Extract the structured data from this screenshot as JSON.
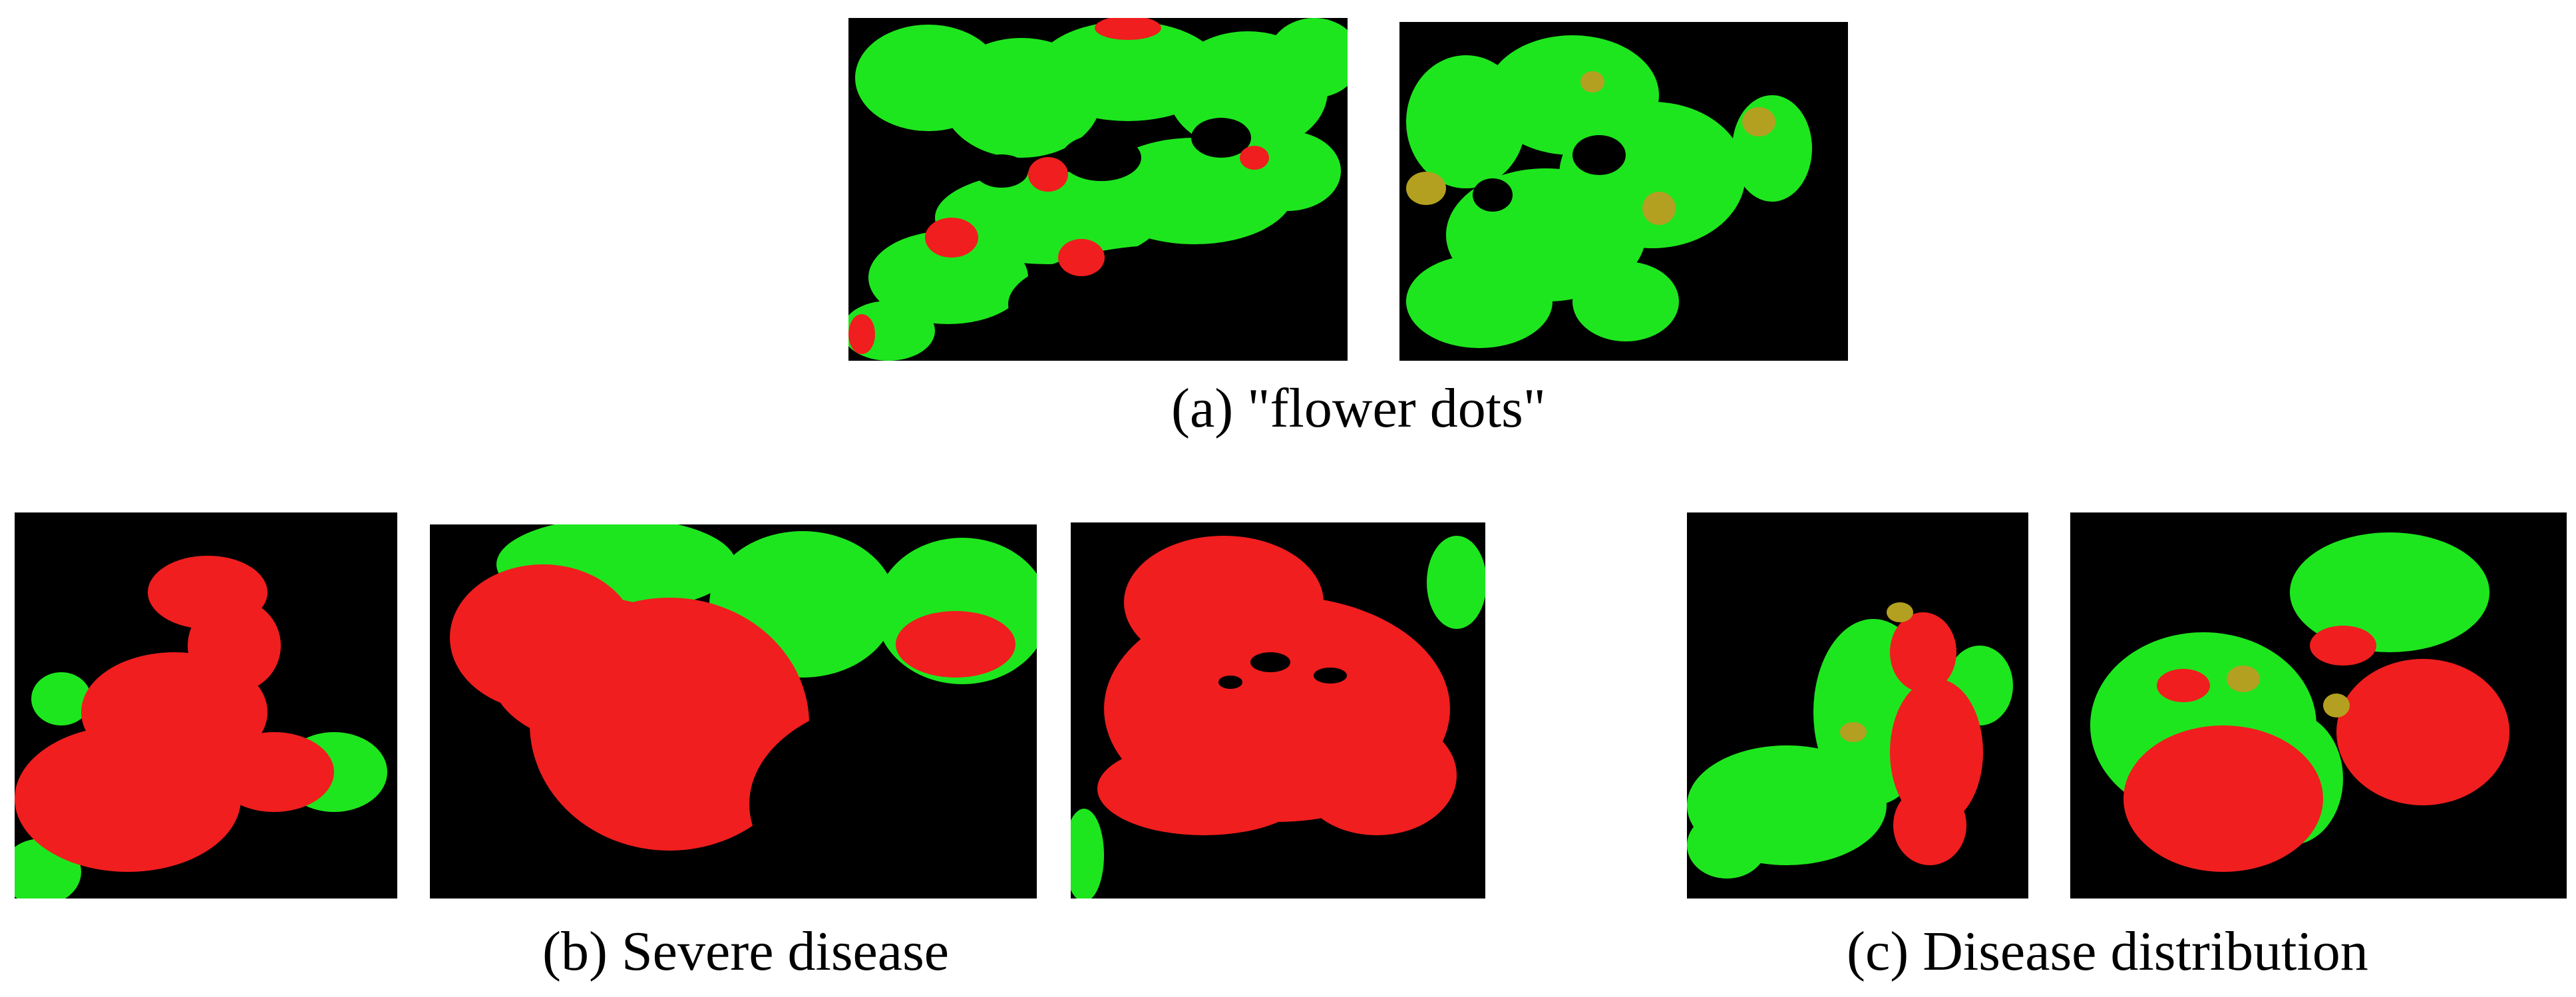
{
  "figure": {
    "captions": {
      "a": "(a)  \"flower dots\"",
      "b": "(b) Severe disease",
      "c": "(c)  Disease distribution"
    },
    "colors": {
      "background": "#000000",
      "healthy": "#1ee61e",
      "disease": "#f01e1e",
      "transition": "#b4a020"
    }
  }
}
